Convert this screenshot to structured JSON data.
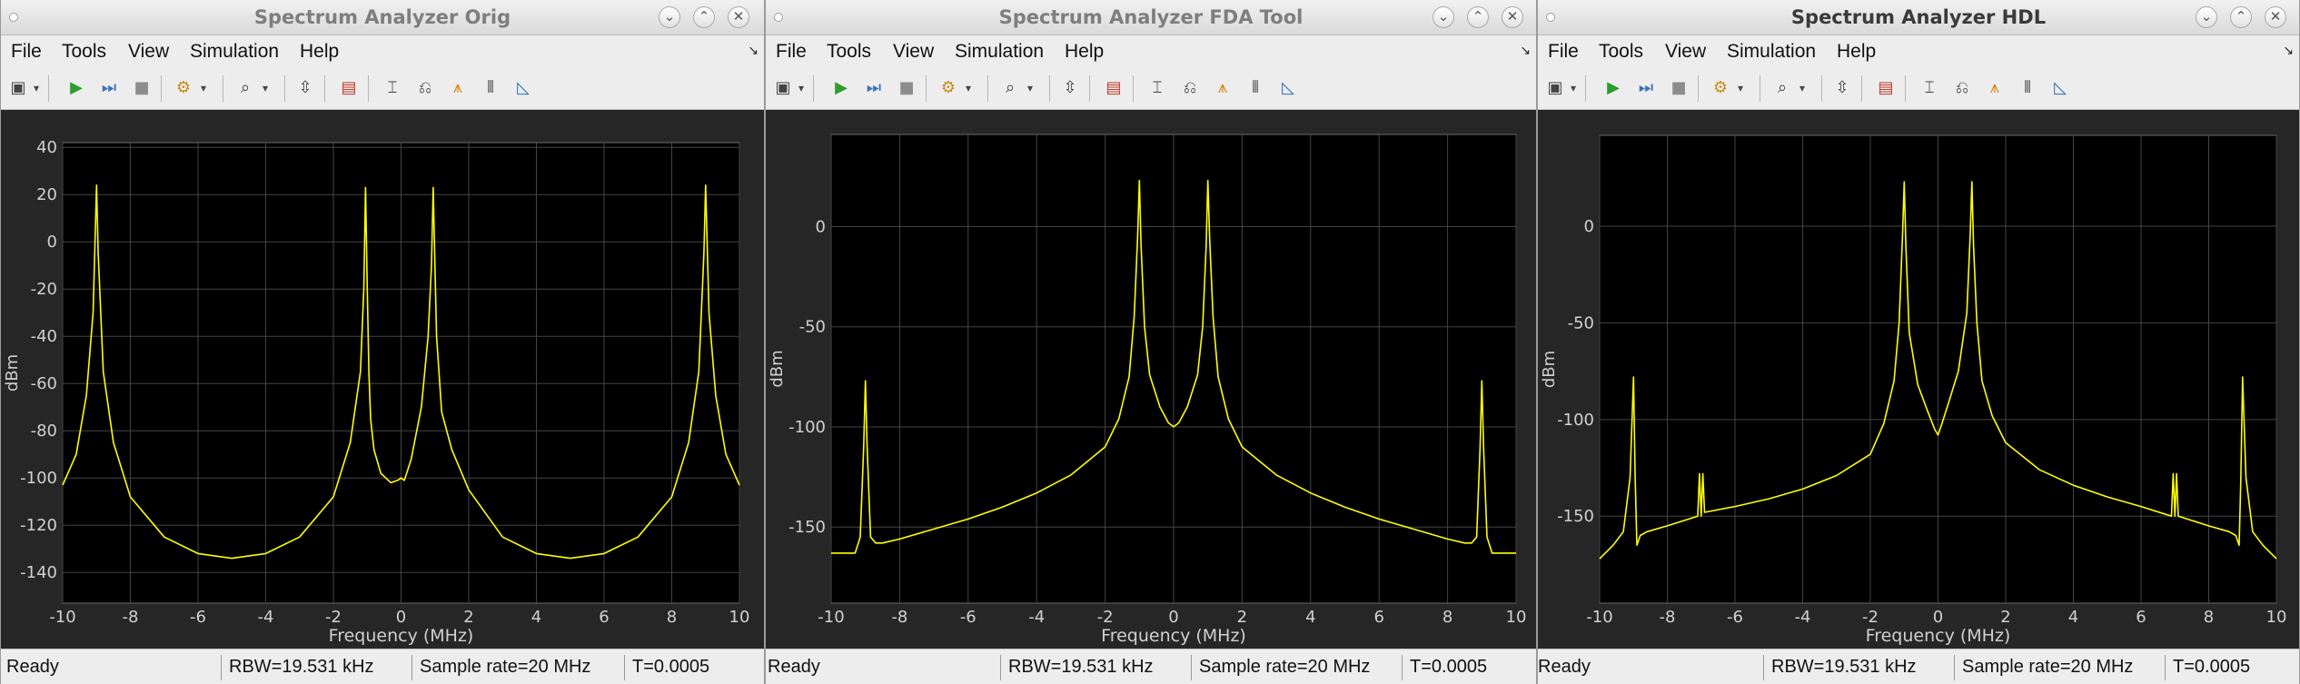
{
  "windows": [
    {
      "title": "Spectrum Analyzer Orig",
      "menu": [
        "File",
        "Tools",
        "View",
        "Simulation",
        "Help"
      ],
      "status": {
        "ready": "Ready",
        "rbw": "RBW=19.531 kHz",
        "sample_rate": "Sample rate=20 MHz",
        "time": "T=0.0005"
      },
      "chart_data": {
        "type": "line",
        "xlabel": "Frequency (MHz)",
        "ylabel": "dBm",
        "xlim": [
          -10,
          10
        ],
        "ylim": [
          -153,
          42
        ],
        "grid": true,
        "xticks": [
          "-10",
          "-8",
          "-6",
          "-4",
          "-2",
          "0",
          "2",
          "4",
          "6",
          "8",
          "10"
        ],
        "yticks": [
          "40",
          "20",
          "0",
          "-20",
          "-40",
          "-60",
          "-80",
          "-100",
          "-120",
          "-140"
        ],
        "series": [
          {
            "color": "#ffff00",
            "x": [
              -10,
              -9.6,
              -9.3,
              -9.1,
              -9.0,
              -8.95,
              -8.8,
              -8.5,
              -8,
              -7,
              -6,
              -5,
              -4,
              -3,
              -2,
              -1.5,
              -1.2,
              -1.1,
              -1.05,
              -1.0,
              -0.95,
              -0.9,
              -0.8,
              -0.6,
              -0.3,
              -0.1,
              0,
              0.1,
              0.3,
              0.6,
              0.8,
              0.9,
              0.95,
              1.0,
              1.05,
              1.2,
              1.5,
              2,
              3,
              4,
              5,
              6,
              7,
              8,
              8.5,
              8.8,
              8.95,
              9.0,
              9.1,
              9.3,
              9.6,
              10
            ],
            "y": [
              -103,
              -90,
              -65,
              -30,
              24,
              -5,
              -55,
              -85,
              -108,
              -125,
              -132,
              -134,
              -132,
              -125,
              -108,
              -85,
              -55,
              -20,
              23,
              -20,
              -55,
              -75,
              -88,
              -98,
              -102,
              -101,
              -100,
              -101,
              -92,
              -70,
              -40,
              -10,
              23,
              -10,
              -40,
              -72,
              -88,
              -105,
              -125,
              -132,
              -134,
              -132,
              -125,
              -108,
              -85,
              -55,
              -5,
              24,
              -30,
              -65,
              -90,
              -103
            ]
          }
        ]
      }
    },
    {
      "title": "Spectrum Analyzer FDA Tool",
      "menu": [
        "File",
        "Tools",
        "View",
        "Simulation",
        "Help"
      ],
      "status": {
        "ready": "Ready",
        "rbw": "RBW=19.531 kHz",
        "sample_rate": "Sample rate=20 MHz",
        "time": "T=0.0005"
      },
      "chart_data": {
        "type": "line",
        "xlabel": "Frequency (MHz)",
        "ylabel": "dBm",
        "xlim": [
          -10,
          10
        ],
        "ylim": [
          -188,
          46
        ],
        "grid": true,
        "xticks": [
          "-10",
          "-8",
          "-6",
          "-4",
          "-2",
          "0",
          "2",
          "4",
          "6",
          "8",
          "10"
        ],
        "yticks": [
          "0",
          "-50",
          "-100",
          "-150"
        ],
        "series": [
          {
            "color": "#ffff00",
            "x": [
              -10,
              -9.3,
              -9.15,
              -9.05,
              -9.0,
              -8.95,
              -8.85,
              -8.7,
              -8.5,
              -8,
              -7,
              -6,
              -5,
              -4,
              -3,
              -2,
              -1.6,
              -1.3,
              -1.15,
              -1.05,
              -1.0,
              -0.95,
              -0.85,
              -0.7,
              -0.4,
              -0.15,
              0,
              0.15,
              0.4,
              0.7,
              0.85,
              0.95,
              1.0,
              1.05,
              1.15,
              1.3,
              1.6,
              2,
              3,
              4,
              5,
              6,
              7,
              8,
              8.5,
              8.7,
              8.85,
              8.95,
              9.0,
              9.05,
              9.15,
              9.3,
              10
            ],
            "y": [
              -163,
              -163,
              -155,
              -110,
              -77,
              -110,
              -155,
              -158,
              -158,
              -156,
              -151,
              -146,
              -140,
              -133,
              -124,
              -110,
              -96,
              -75,
              -45,
              -5,
              23,
              -10,
              -50,
              -74,
              -90,
              -98,
              -100,
              -98,
              -90,
              -74,
              -50,
              -10,
              23,
              -5,
              -45,
              -75,
              -96,
              -110,
              -124,
              -133,
              -140,
              -146,
              -151,
              -156,
              -158,
              -158,
              -155,
              -110,
              -77,
              -110,
              -155,
              -163,
              -163
            ]
          }
        ]
      }
    },
    {
      "title": "Spectrum Analyzer HDL",
      "menu": [
        "File",
        "Tools",
        "View",
        "Simulation",
        "Help"
      ],
      "status": {
        "ready": "Ready",
        "rbw": "RBW=19.531 kHz",
        "sample_rate": "Sample rate=20 MHz",
        "time": "T=0.0005"
      },
      "chart_data": {
        "type": "line",
        "xlabel": "Frequency (MHz)",
        "ylabel": "dBm",
        "xlim": [
          -10,
          10
        ],
        "ylim": [
          -195,
          47
        ],
        "grid": true,
        "xticks": [
          "-10",
          "-8",
          "-6",
          "-4",
          "-2",
          "0",
          "2",
          "4",
          "6",
          "8",
          "10"
        ],
        "yticks": [
          "0",
          "-50",
          "-100",
          "-150"
        ],
        "series": [
          {
            "color": "#ffff00",
            "x": [
              -10,
              -9.6,
              -9.3,
              -9.1,
              -9.0,
              -8.95,
              -8.9,
              -8.8,
              -8.6,
              -8,
              -7.1,
              -7.05,
              -7.0,
              -6.95,
              -6.9,
              -6,
              -5,
              -4,
              -3,
              -2,
              -1.6,
              -1.3,
              -1.15,
              -1.05,
              -1.0,
              -0.95,
              -0.85,
              -0.6,
              -0.3,
              -0.1,
              0,
              0.1,
              0.3,
              0.6,
              0.85,
              0.95,
              1.0,
              1.05,
              1.15,
              1.3,
              1.6,
              2,
              3,
              4,
              5,
              6,
              6.9,
              6.95,
              7.0,
              7.05,
              7.1,
              8,
              8.6,
              8.8,
              8.9,
              8.95,
              9.0,
              9.1,
              9.3,
              9.6,
              10
            ],
            "y": [
              -172,
              -165,
              -158,
              -130,
              -78,
              -130,
              -165,
              -160,
              -158,
              -155,
              -150,
              -128,
              -150,
              -128,
              -148,
              -145,
              -141,
              -136,
              -129,
              -118,
              -102,
              -80,
              -50,
              -5,
              23,
              -10,
              -55,
              -82,
              -96,
              -105,
              -108,
              -103,
              -92,
              -75,
              -45,
              -5,
              23,
              -10,
              -50,
              -80,
              -98,
              -112,
              -126,
              -134,
              -140,
              -145,
              -150,
              -128,
              -150,
              -128,
              -150,
              -155,
              -158,
              -160,
              -165,
              -130,
              -78,
              -130,
              -158,
              -165,
              -172
            ]
          }
        ]
      }
    }
  ]
}
